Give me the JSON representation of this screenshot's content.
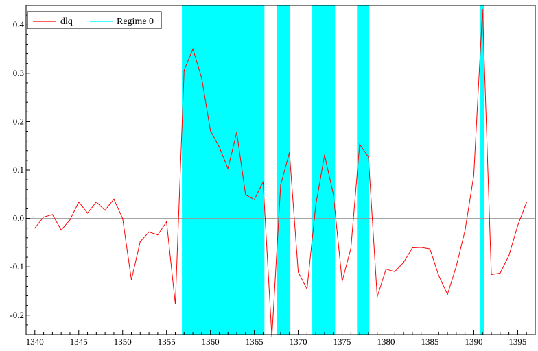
{
  "chart_data": {
    "type": "line",
    "title": "",
    "xlabel": "",
    "ylabel": "",
    "xlim": [
      1339,
      1397
    ],
    "ylim": [
      -0.24,
      0.44
    ],
    "x_ticks": [
      1340,
      1345,
      1350,
      1355,
      1360,
      1365,
      1370,
      1375,
      1380,
      1385,
      1390,
      1395
    ],
    "y_ticks": [
      -0.2,
      -0.1,
      0.0,
      0.1,
      0.2,
      0.3,
      0.4
    ],
    "y_tick_labels": [
      "-0.2",
      "-0.1",
      "0.0",
      "0.1",
      "0.2",
      "0.3",
      "0.4"
    ],
    "grid": false,
    "zero_line": true,
    "legend_position": "top-left",
    "series": [
      {
        "name": "dlq",
        "color": "#ff0000",
        "x": [
          1340,
          1341,
          1342,
          1343,
          1344,
          1345,
          1346,
          1347,
          1348,
          1349,
          1350,
          1351,
          1352,
          1353,
          1354,
          1355,
          1356,
          1357,
          1358,
          1359,
          1360,
          1361,
          1362,
          1363,
          1364,
          1365,
          1366,
          1367,
          1368,
          1369,
          1370,
          1371,
          1372,
          1373,
          1374,
          1375,
          1376,
          1377,
          1378,
          1379,
          1380,
          1381,
          1382,
          1383,
          1384,
          1385,
          1386,
          1387,
          1388,
          1389,
          1390,
          1391,
          1392,
          1393,
          1394,
          1395,
          1396
        ],
        "values": [
          -0.02,
          0.003,
          0.008,
          -0.024,
          -0.003,
          0.034,
          0.011,
          0.034,
          0.017,
          0.04,
          0.0,
          -0.127,
          -0.048,
          -0.028,
          -0.034,
          -0.007,
          -0.177,
          0.306,
          0.35,
          0.29,
          0.181,
          0.148,
          0.103,
          0.178,
          0.049,
          0.039,
          0.075,
          -0.245,
          0.069,
          0.136,
          -0.111,
          -0.146,
          0.028,
          0.131,
          0.05,
          -0.13,
          -0.062,
          0.153,
          0.127,
          -0.162,
          -0.105,
          -0.11,
          -0.091,
          -0.061,
          -0.06,
          -0.063,
          -0.118,
          -0.157,
          -0.099,
          -0.025,
          0.089,
          0.432,
          -0.116,
          -0.113,
          -0.077,
          -0.015,
          0.033
        ]
      }
    ],
    "regimes": {
      "name": "Regime 0",
      "color": "#00ffff",
      "spans": [
        [
          1356.75,
          1366.15
        ],
        [
          1367.6,
          1369.1
        ],
        [
          1371.6,
          1374.2
        ],
        [
          1376.7,
          1378.1
        ],
        [
          1390.75,
          1391.2
        ]
      ]
    }
  }
}
